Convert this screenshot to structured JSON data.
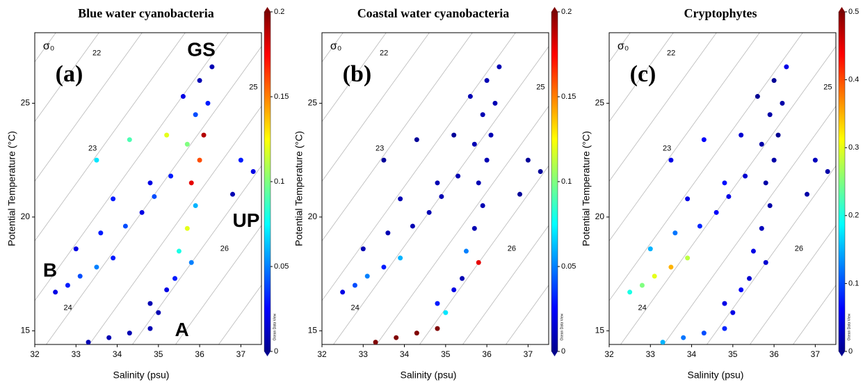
{
  "chart_data": [
    {
      "type": "scatter",
      "title": "Blue water cyanobacteria",
      "xlabel": "Salinity (psu)",
      "ylabel": "Potential Temperature (°C)",
      "xlim": [
        32,
        37.5
      ],
      "ylim": [
        14.4,
        28.1
      ],
      "xticks": [
        32,
        33,
        34,
        35,
        36,
        37
      ],
      "yticks": [
        15,
        20,
        25
      ],
      "annotations": [
        "(a)",
        "σ₀",
        "GS",
        "UP",
        "B",
        "A",
        "22",
        "23",
        "24",
        "25",
        "26"
      ],
      "colorbar": {
        "lim": [
          0,
          0.2
        ],
        "ticks": [
          0,
          0.05,
          0.1,
          0.15,
          0.2
        ],
        "label": "Ocean Data View"
      },
      "x": [
        33.3,
        33.8,
        34.3,
        34.8,
        35.0,
        34.8,
        35.2,
        35.4,
        32.5,
        32.8,
        33.1,
        33.5,
        33.9,
        33.0,
        33.6,
        34.2,
        34.6,
        33.9,
        34.8,
        35.3,
        34.9,
        35.5,
        35.7,
        35.9,
        35.8,
        36.0,
        35.7,
        36.1,
        35.9,
        35.6,
        36.0,
        36.3,
        36.2,
        35.8,
        33.5,
        34.3,
        35.2,
        37.0,
        37.3,
        36.8
      ],
      "y": [
        14.5,
        14.7,
        14.9,
        15.1,
        15.8,
        16.2,
        16.8,
        17.3,
        16.7,
        17.0,
        17.4,
        17.8,
        18.2,
        18.6,
        19.3,
        19.6,
        20.2,
        20.8,
        21.5,
        21.8,
        20.9,
        18.5,
        19.5,
        20.5,
        21.5,
        22.5,
        23.2,
        23.6,
        24.5,
        25.3,
        26.0,
        26.6,
        25.0,
        18.0,
        22.5,
        23.4,
        23.6,
        22.5,
        22.0,
        21.0
      ],
      "values": [
        0.01,
        0.01,
        0.01,
        0.01,
        0.01,
        0.01,
        0.02,
        0.03,
        0.02,
        0.03,
        0.04,
        0.05,
        0.03,
        0.02,
        0.03,
        0.04,
        0.02,
        0.03,
        0.02,
        0.03,
        0.04,
        0.08,
        0.12,
        0.06,
        0.18,
        0.16,
        0.1,
        0.19,
        0.04,
        0.02,
        0.01,
        0.01,
        0.03,
        0.05,
        0.07,
        0.09,
        0.12,
        0.03,
        0.02,
        0.01
      ]
    },
    {
      "type": "scatter",
      "title": "Coastal water cyanobacteria",
      "xlabel": "Salinity (psu)",
      "ylabel": "Potential Temperature (°C)",
      "xlim": [
        32,
        37.5
      ],
      "ylim": [
        14.4,
        28.1
      ],
      "xticks": [
        32,
        33,
        34,
        35,
        36,
        37
      ],
      "yticks": [
        15,
        20,
        25
      ],
      "annotations": [
        "(b)",
        "σ₀",
        "22",
        "23",
        "24",
        "25",
        "26"
      ],
      "colorbar": {
        "lim": [
          0,
          0.2
        ],
        "ticks": [
          0,
          0.05,
          0.1,
          0.15,
          0.2
        ],
        "label": "Ocean Data View"
      },
      "x": [
        33.3,
        33.8,
        34.3,
        34.8,
        35.0,
        34.8,
        35.2,
        35.4,
        32.5,
        32.8,
        33.1,
        33.5,
        33.9,
        33.0,
        33.6,
        34.2,
        34.6,
        33.9,
        34.8,
        35.3,
        34.9,
        35.5,
        35.7,
        35.9,
        35.8,
        36.0,
        35.7,
        36.1,
        35.9,
        35.6,
        36.0,
        36.3,
        36.2,
        35.8,
        33.5,
        34.3,
        35.2,
        37.0,
        37.3,
        36.8
      ],
      "y": [
        14.5,
        14.7,
        14.9,
        15.1,
        15.8,
        16.2,
        16.8,
        17.3,
        16.7,
        17.0,
        17.4,
        17.8,
        18.2,
        18.6,
        19.3,
        19.6,
        20.2,
        20.8,
        21.5,
        21.8,
        20.9,
        18.5,
        19.5,
        20.5,
        21.5,
        22.5,
        23.2,
        23.6,
        24.5,
        25.3,
        26.0,
        26.6,
        25.0,
        18.0,
        22.5,
        23.4,
        23.6,
        22.5,
        22.0,
        21.0
      ],
      "values": [
        0.2,
        0.2,
        0.2,
        0.2,
        0.07,
        0.03,
        0.02,
        0.01,
        0.02,
        0.04,
        0.05,
        0.03,
        0.06,
        0.01,
        0.01,
        0.01,
        0.01,
        0.01,
        0.01,
        0.01,
        0.01,
        0.05,
        0.01,
        0.01,
        0.01,
        0.01,
        0.01,
        0.01,
        0.01,
        0.01,
        0.01,
        0.01,
        0.01,
        0.18,
        0.005,
        0.005,
        0.005,
        0.005,
        0.005,
        0.005
      ]
    },
    {
      "type": "scatter",
      "title": "Cryptophytes",
      "xlabel": "Salinity (psu)",
      "ylabel": "Potential Temperature (°C)",
      "xlim": [
        32,
        37.5
      ],
      "ylim": [
        14.4,
        28.1
      ],
      "xticks": [
        32,
        33,
        34,
        35,
        36,
        37
      ],
      "yticks": [
        15,
        20,
        25
      ],
      "annotations": [
        "(c)",
        "σ₀",
        "22",
        "23",
        "24",
        "25",
        "26"
      ],
      "colorbar": {
        "lim": [
          0,
          0.5
        ],
        "ticks": [
          0,
          0.1,
          0.2,
          0.3,
          0.4,
          0.5
        ],
        "label": "Ocean Data View"
      },
      "x": [
        33.3,
        33.8,
        34.3,
        34.8,
        35.0,
        34.8,
        35.2,
        35.4,
        32.5,
        32.8,
        33.1,
        33.5,
        33.9,
        33.0,
        33.6,
        34.2,
        34.6,
        33.9,
        34.8,
        35.3,
        34.9,
        35.5,
        35.7,
        35.9,
        35.8,
        36.0,
        35.7,
        36.1,
        35.9,
        35.6,
        36.0,
        36.3,
        36.2,
        35.8,
        33.5,
        34.3,
        35.2,
        37.0,
        37.3,
        36.8
      ],
      "y": [
        14.5,
        14.7,
        14.9,
        15.1,
        15.8,
        16.2,
        16.8,
        17.3,
        16.7,
        17.0,
        17.4,
        17.8,
        18.2,
        18.6,
        19.3,
        19.6,
        20.2,
        20.8,
        21.5,
        21.8,
        20.9,
        18.5,
        19.5,
        20.5,
        21.5,
        22.5,
        23.2,
        23.6,
        24.5,
        25.3,
        26.0,
        26.6,
        25.0,
        18.0,
        22.5,
        23.4,
        23.6,
        22.5,
        22.0,
        21.0
      ],
      "values": [
        0.15,
        0.12,
        0.1,
        0.08,
        0.05,
        0.05,
        0.06,
        0.04,
        0.2,
        0.25,
        0.3,
        0.35,
        0.28,
        0.15,
        0.12,
        0.08,
        0.06,
        0.05,
        0.07,
        0.04,
        0.05,
        0.05,
        0.03,
        0.02,
        0.02,
        0.02,
        0.02,
        0.01,
        0.02,
        0.01,
        0.01,
        0.05,
        0.02,
        0.04,
        0.05,
        0.06,
        0.04,
        0.03,
        0.02,
        0.02
      ]
    }
  ]
}
